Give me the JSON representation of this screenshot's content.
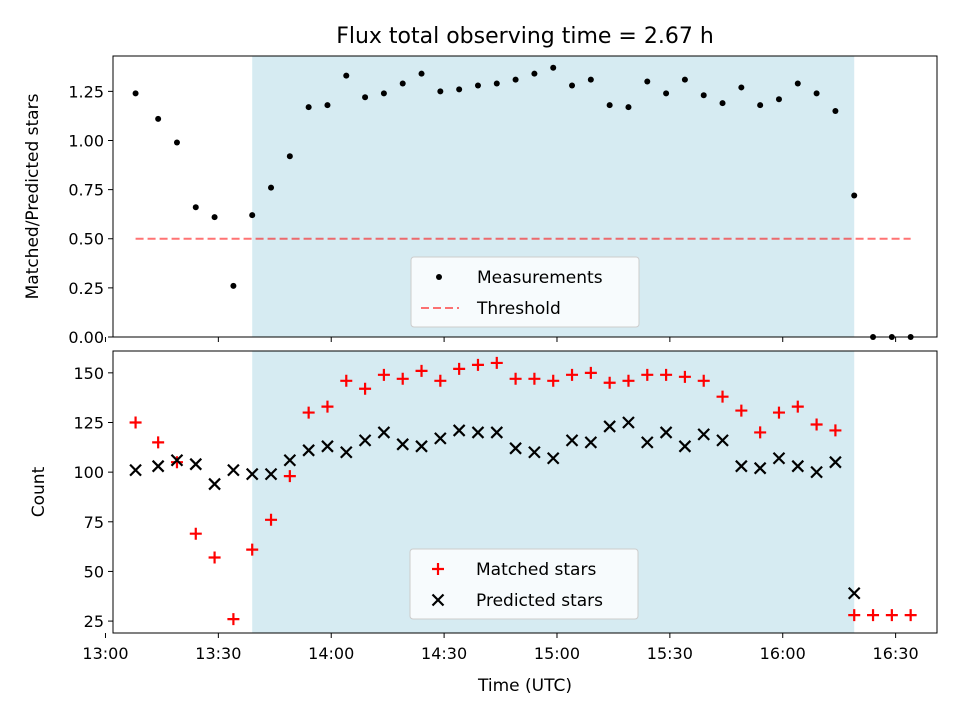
{
  "title": "Flux total observing time = 2.67 h",
  "colors": {
    "shade": "#add8e6",
    "threshold": "#ff0000",
    "matched": "#ff0000",
    "predicted": "#000000",
    "measurement": "#000000"
  },
  "chart_data": [
    {
      "type": "scatter",
      "ylabel": "Matched/Predicted stars",
      "xlabel": "",
      "xlim": [
        "13:02",
        "16:41"
      ],
      "ylim": [
        0,
        1.43
      ],
      "yticks": [
        0.0,
        0.25,
        0.5,
        0.75,
        1.0,
        1.25
      ],
      "ytick_labels": [
        "0.00",
        "0.25",
        "0.50",
        "0.75",
        "1.00",
        "1.25"
      ],
      "shaded_interval": [
        "13:39",
        "16:19"
      ],
      "legend_position": "lower center",
      "series": [
        {
          "name": "Measurements",
          "marker": "dot",
          "x": [
            "13:08",
            "13:14",
            "13:19",
            "13:24",
            "13:29",
            "13:34",
            "13:39",
            "13:44",
            "13:49",
            "13:54",
            "13:59",
            "14:04",
            "14:09",
            "14:14",
            "14:19",
            "14:24",
            "14:29",
            "14:34",
            "14:39",
            "14:44",
            "14:49",
            "14:54",
            "14:59",
            "15:04",
            "15:09",
            "15:14",
            "15:19",
            "15:24",
            "15:29",
            "15:34",
            "15:39",
            "15:44",
            "15:49",
            "15:54",
            "15:59",
            "16:04",
            "16:09",
            "16:14",
            "16:19",
            "16:24",
            "16:29",
            "16:34"
          ],
          "y": [
            1.24,
            1.11,
            0.99,
            0.66,
            0.61,
            0.26,
            0.62,
            0.76,
            0.92,
            1.17,
            1.18,
            1.33,
            1.22,
            1.24,
            1.29,
            1.34,
            1.25,
            1.26,
            1.28,
            1.29,
            1.31,
            1.34,
            1.37,
            1.28,
            1.31,
            1.18,
            1.17,
            1.3,
            1.24,
            1.31,
            1.23,
            1.19,
            1.27,
            1.18,
            1.21,
            1.29,
            1.24,
            1.15,
            0.72,
            0.0,
            0.0,
            0.0
          ]
        },
        {
          "name": "Threshold",
          "style": "dashed",
          "x": [
            "13:08",
            "16:34"
          ],
          "y": [
            0.5,
            0.5
          ]
        }
      ]
    },
    {
      "type": "scatter",
      "ylabel": "Count",
      "xlabel": "Time (UTC)",
      "xlim": [
        "13:02",
        "16:41"
      ],
      "ylim": [
        19,
        161
      ],
      "yticks": [
        25,
        50,
        75,
        100,
        125,
        150
      ],
      "ytick_labels": [
        "25",
        "50",
        "75",
        "100",
        "125",
        "150"
      ],
      "xticks": [
        "13:00",
        "13:30",
        "14:00",
        "14:30",
        "15:00",
        "15:30",
        "16:00",
        "16:30"
      ],
      "shaded_interval": [
        "13:39",
        "16:19"
      ],
      "legend_position": "lower center",
      "series": [
        {
          "name": "Matched stars",
          "marker": "plus",
          "x": [
            "13:08",
            "13:14",
            "13:19",
            "13:24",
            "13:29",
            "13:34",
            "13:39",
            "13:44",
            "13:49",
            "13:54",
            "13:59",
            "14:04",
            "14:09",
            "14:14",
            "14:19",
            "14:24",
            "14:29",
            "14:34",
            "14:39",
            "14:44",
            "14:49",
            "14:54",
            "14:59",
            "15:04",
            "15:09",
            "15:14",
            "15:19",
            "15:24",
            "15:29",
            "15:34",
            "15:39",
            "15:44",
            "15:49",
            "15:54",
            "15:59",
            "16:04",
            "16:09",
            "16:14",
            "16:19",
            "16:24",
            "16:29",
            "16:34"
          ],
          "y": [
            125,
            115,
            105,
            69,
            57,
            26,
            61,
            76,
            98,
            130,
            133,
            146,
            142,
            149,
            147,
            151,
            146,
            152,
            154,
            155,
            147,
            147,
            146,
            149,
            150,
            145,
            146,
            149,
            149,
            148,
            146,
            138,
            131,
            120,
            130,
            133,
            124,
            121,
            28,
            28,
            28,
            28
          ]
        },
        {
          "name": "Predicted stars",
          "marker": "x",
          "x": [
            "13:08",
            "13:14",
            "13:19",
            "13:24",
            "13:29",
            "13:34",
            "13:39",
            "13:44",
            "13:49",
            "13:54",
            "13:59",
            "14:04",
            "14:09",
            "14:14",
            "14:19",
            "14:24",
            "14:29",
            "14:34",
            "14:39",
            "14:44",
            "14:49",
            "14:54",
            "14:59",
            "15:04",
            "15:09",
            "15:14",
            "15:19",
            "15:24",
            "15:29",
            "15:34",
            "15:39",
            "15:44",
            "15:49",
            "15:54",
            "15:59",
            "16:04",
            "16:09",
            "16:14",
            "16:19"
          ],
          "y": [
            101,
            103,
            106,
            104,
            94,
            101,
            99,
            99,
            106,
            111,
            113,
            110,
            116,
            120,
            114,
            113,
            117,
            121,
            120,
            120,
            112,
            110,
            107,
            116,
            115,
            123,
            125,
            115,
            120,
            113,
            119,
            116,
            103,
            102,
            107,
            103,
            100,
            105,
            39
          ]
        }
      ]
    }
  ]
}
